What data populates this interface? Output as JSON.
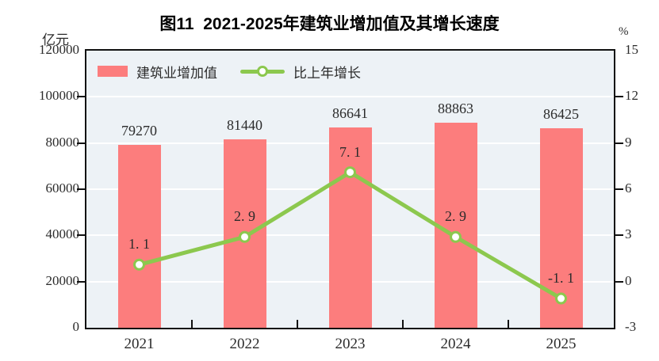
{
  "chart_data": {
    "type": "bar",
    "subtype": "bar-line-combo",
    "title": "图11  2021-2025年建筑业增加值及其增长速度",
    "categories": [
      "2021",
      "2022",
      "2023",
      "2024",
      "2025"
    ],
    "series": [
      {
        "name": "建筑业增加值",
        "kind": "bar",
        "axis": "left",
        "values": [
          79270,
          81440,
          86641,
          88863,
          86425
        ],
        "value_labels": [
          "79270",
          "81440",
          "86641",
          "88863",
          "86425"
        ],
        "color": "#FC7D7D"
      },
      {
        "name": "比上年增长",
        "kind": "line",
        "axis": "right",
        "values": [
          1.1,
          2.9,
          7.1,
          2.9,
          -1.1
        ],
        "value_labels": [
          "1. 1",
          "2. 9",
          "7. 1",
          "2. 9",
          "-1. 1"
        ],
        "color": "#8CC84E",
        "marker": "circle-white-fill"
      }
    ],
    "left_axis": {
      "unit": "亿元",
      "min": 0,
      "max": 120000,
      "step": 20000,
      "tick_labels": [
        "0",
        "20000",
        "40000",
        "60000",
        "80000",
        "100000",
        "120000"
      ]
    },
    "right_axis": {
      "unit": "%",
      "min": -3,
      "max": 15,
      "step": 3,
      "tick_labels": [
        "-3",
        "0",
        "3",
        "6",
        "9",
        "12",
        "15"
      ]
    },
    "legend_position": "top-left-inside",
    "grid": "horizontal-white",
    "plot_background": "#EDF2F6",
    "frame_color": "#111111",
    "text_color": "#2b2b2b"
  }
}
